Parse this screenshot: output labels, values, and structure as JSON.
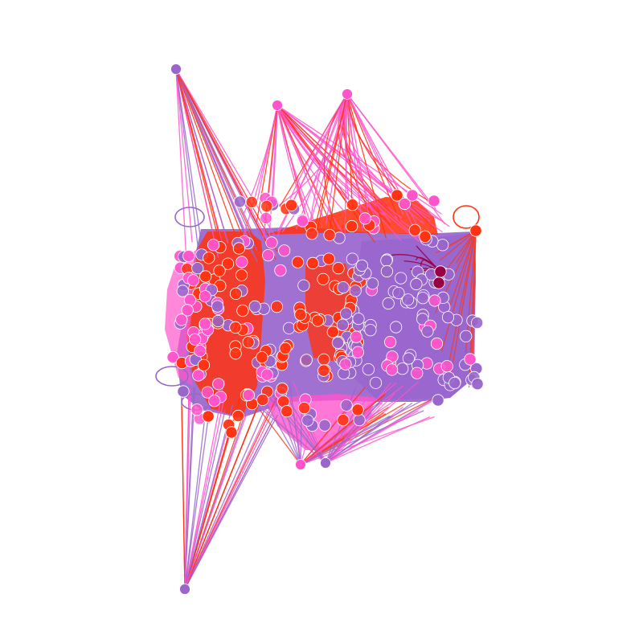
{
  "graph": {
    "palette": {
      "purple": "#9966cc",
      "pink": "#ff55cc",
      "red": "#ff3311",
      "maroon": "#990044",
      "node_outline": "#ffffff"
    }
  }
}
